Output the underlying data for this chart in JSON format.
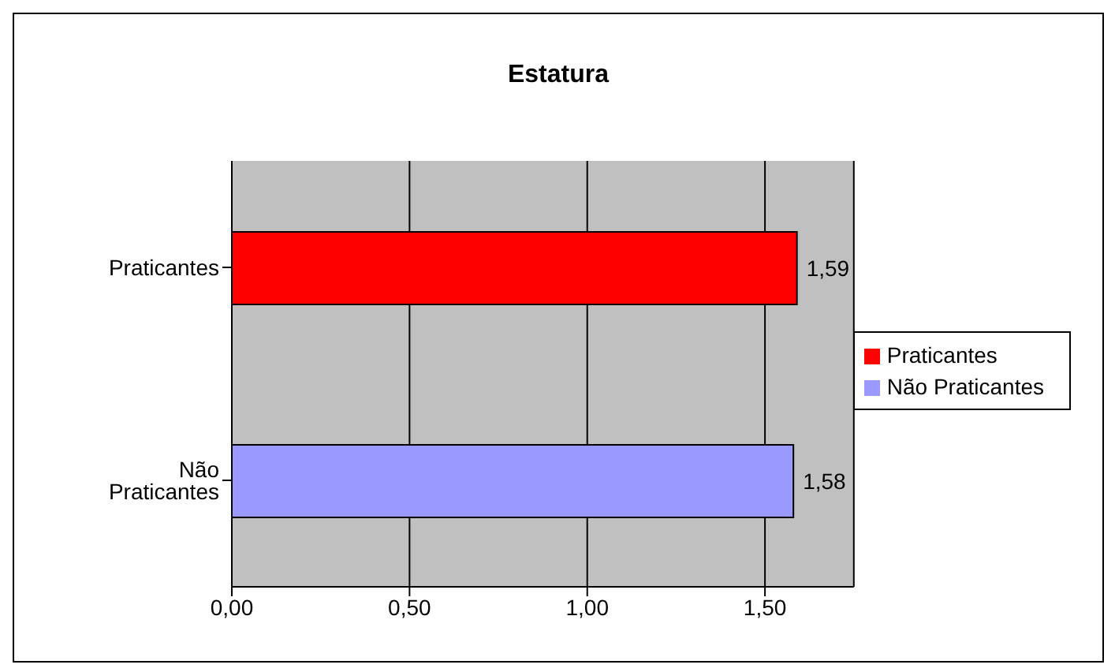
{
  "chart_data": {
    "type": "bar",
    "title": "Estatura",
    "orientation": "horizontal",
    "categories": [
      "Praticantes",
      "Não Praticantes"
    ],
    "series": [
      {
        "name": "Praticantes",
        "color": "#ff0000",
        "values": [
          1.59,
          null
        ],
        "value_labels": [
          "1,59",
          null
        ]
      },
      {
        "name": "Não Praticantes",
        "color": "#9999ff",
        "values": [
          null,
          1.58
        ],
        "value_labels": [
          null,
          "1,58"
        ]
      }
    ],
    "xlim": [
      0,
      1.75
    ],
    "xticks": [
      {
        "value": 0,
        "label": "0,00"
      },
      {
        "value": 0.5,
        "label": "0,50"
      },
      {
        "value": 1,
        "label": "1,00"
      },
      {
        "value": 1.5,
        "label": "1,50"
      }
    ],
    "grid": "x",
    "legend": "right"
  }
}
